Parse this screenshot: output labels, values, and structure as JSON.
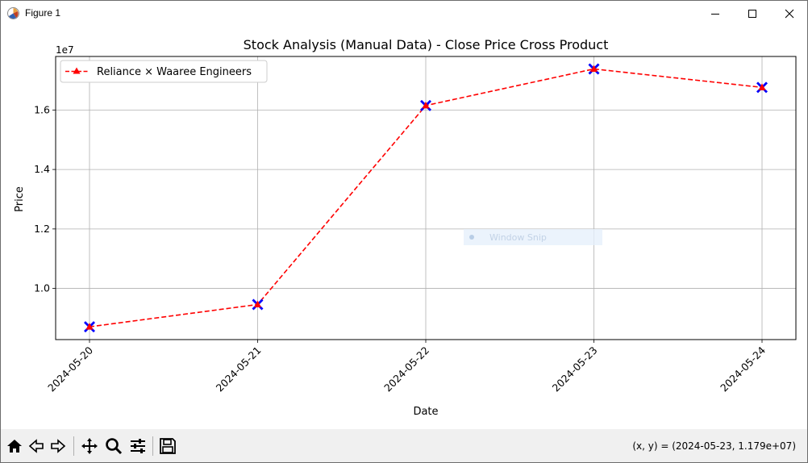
{
  "window": {
    "title": "Figure 1",
    "buttons": {
      "minimize": "minimize-icon",
      "maximize": "maximize-icon",
      "close": "close-icon"
    }
  },
  "toolbar": {
    "icons": [
      "home-icon",
      "back-icon",
      "forward-icon",
      "pan-icon",
      "zoom-icon",
      "configure-subplots-icon",
      "save-icon"
    ],
    "coords": "(x, y) = (2024-05-23, 1.179e+07)"
  },
  "overlay": {
    "text": "Window Snip"
  },
  "chart_data": {
    "type": "line",
    "title": "Stock Analysis (Manual Data) - Close Price Cross Product",
    "xlabel": "Date",
    "ylabel": "Price",
    "y_offset_label": "1e7",
    "categories": [
      "2024-05-20",
      "2024-05-21",
      "2024-05-22",
      "2024-05-23",
      "2024-05-24"
    ],
    "y_ticks": [
      1.0,
      1.2,
      1.4,
      1.6
    ],
    "y_scale": 10000000,
    "ylim": [
      8280000,
      17800000
    ],
    "grid": true,
    "legend_position": "top-left",
    "series": [
      {
        "name": "Reliance × Waaree Engineers",
        "values": [
          8710000,
          9460000,
          16150000,
          17380000,
          16760000
        ],
        "color": "#ff0000",
        "line_style": "dashed",
        "marker": "triangle",
        "marker_overlay_color": "#0000ff"
      }
    ]
  }
}
